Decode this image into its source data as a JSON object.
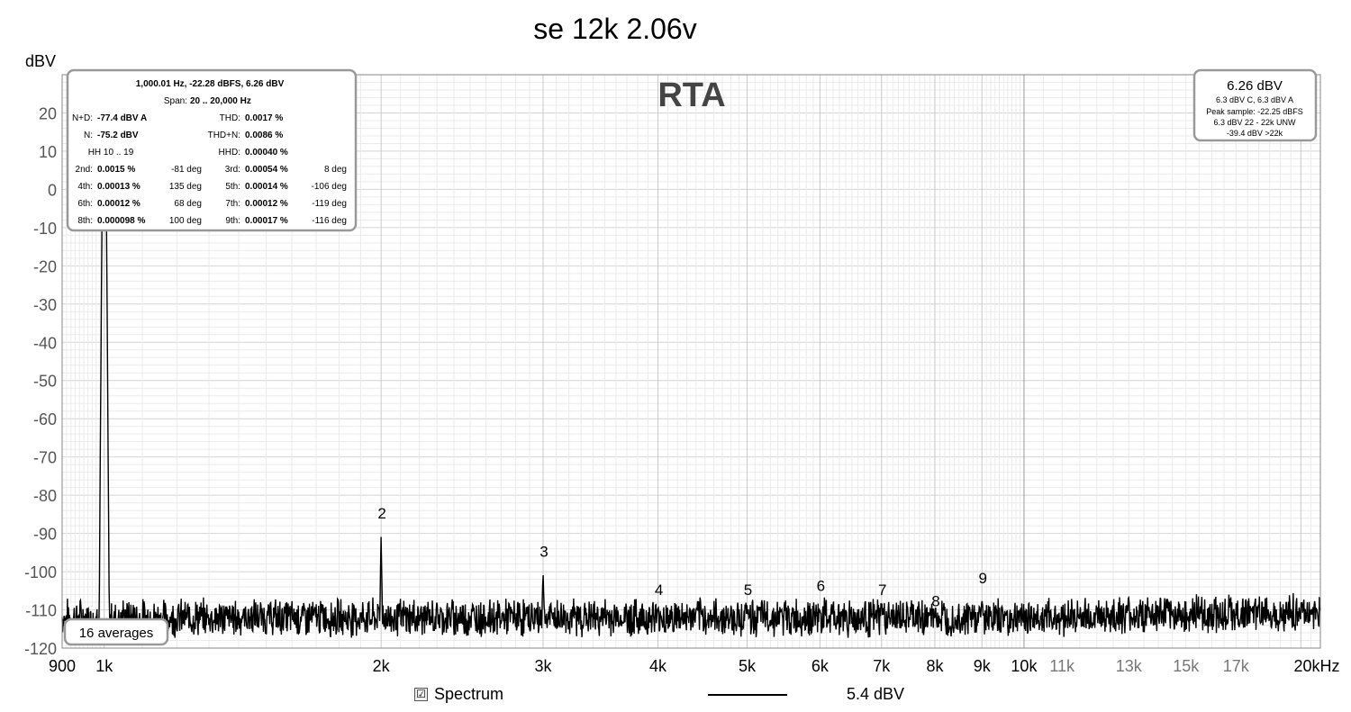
{
  "chart_data": {
    "type": "line",
    "title": "se 12k 2.06v",
    "watermark": "RTA",
    "ylabel": "dBV",
    "xlabel": "",
    "x_scale": "log",
    "xlim": [
      900,
      21000
    ],
    "ylim": [
      -120,
      30
    ],
    "y_ticks": [
      20,
      10,
      0,
      -10,
      -20,
      -30,
      -40,
      -50,
      -60,
      -70,
      -80,
      -90,
      -100,
      -110,
      -120
    ],
    "x_ticks": [
      {
        "value": 900,
        "label": "900",
        "major": true
      },
      {
        "value": 1000,
        "label": "1k",
        "major": true
      },
      {
        "value": 2000,
        "label": "2k",
        "major": true
      },
      {
        "value": 3000,
        "label": "3k",
        "major": true
      },
      {
        "value": 4000,
        "label": "4k",
        "major": true
      },
      {
        "value": 5000,
        "label": "5k",
        "major": true
      },
      {
        "value": 6000,
        "label": "6k",
        "major": true
      },
      {
        "value": 7000,
        "label": "7k",
        "major": true
      },
      {
        "value": 8000,
        "label": "8k",
        "major": true
      },
      {
        "value": 9000,
        "label": "9k",
        "major": true
      },
      {
        "value": 10000,
        "label": "10k",
        "major": true
      },
      {
        "value": 11000,
        "label": "11k",
        "major": false
      },
      {
        "value": 13000,
        "label": "13k",
        "major": false
      },
      {
        "value": 15000,
        "label": "15k",
        "major": false
      },
      {
        "value": 17000,
        "label": "17k",
        "major": false
      },
      {
        "value": 20000,
        "label": "20kHz",
        "major": true
      }
    ],
    "grid": true,
    "colors": {
      "trace": "#000000",
      "grid": "#d4d4d4",
      "minor_grid": "#ebebeb",
      "watermark": "#444444"
    },
    "series": [
      {
        "name": "Spectrum",
        "noise_floor": -112,
        "peaks": [
          {
            "freq": 1000,
            "level": 6.3
          },
          {
            "freq": 2000,
            "level": -90
          },
          {
            "freq": 3000,
            "level": -100
          },
          {
            "freq": 4000,
            "level": -111
          },
          {
            "freq": 5000,
            "level": -110
          },
          {
            "freq": 6000,
            "level": -110
          },
          {
            "freq": 7000,
            "level": -110
          },
          {
            "freq": 8000,
            "level": -112
          },
          {
            "freq": 9000,
            "level": -107
          }
        ]
      }
    ],
    "harmonic_markers": [
      {
        "label": "2",
        "freq": 2000,
        "level": -87
      },
      {
        "label": "3",
        "freq": 3000,
        "level": -97
      },
      {
        "label": "4",
        "freq": 4000,
        "level": -107
      },
      {
        "label": "5",
        "freq": 5000,
        "level": -107
      },
      {
        "label": "6",
        "freq": 6000,
        "level": -106
      },
      {
        "label": "7",
        "freq": 7000,
        "level": -107
      },
      {
        "label": "8",
        "freq": 8000,
        "level": -110
      },
      {
        "label": "9",
        "freq": 9000,
        "level": -104
      }
    ],
    "averages_label": "16 averages",
    "legend": {
      "checked": true,
      "name": "Spectrum",
      "value": "5.4 dBV"
    }
  },
  "info_box": {
    "header": "1,000.01 Hz, -22.28 dBFS, 6.26 dBV",
    "span_label": "Span:",
    "span_value": "20 .. 20,000 Hz",
    "rows": [
      [
        {
          "label": "N+D:",
          "value": "-77.4 dBV A",
          "bold": true
        },
        {
          "label": "",
          "value": ""
        },
        {
          "label": "THD:",
          "value": "0.0017 %",
          "bold": true
        },
        {
          "label": "",
          "value": ""
        }
      ],
      [
        {
          "label": "N:",
          "value": "-75.2 dBV",
          "bold": true
        },
        {
          "label": "",
          "value": ""
        },
        {
          "label": "THD+N:",
          "value": "0.0086 %",
          "bold": true
        },
        {
          "label": "",
          "value": ""
        }
      ],
      [
        {
          "label": "HH 10 .. 19",
          "value": ""
        },
        {
          "label": "",
          "value": ""
        },
        {
          "label": "HHD:",
          "value": "0.00040 %",
          "bold": true
        },
        {
          "label": "",
          "value": ""
        }
      ],
      [
        {
          "label": "2nd:",
          "value": "0.0015 %",
          "bold": true
        },
        {
          "label": "",
          "value": "-81 deg"
        },
        {
          "label": "3rd:",
          "value": "0.00054 %",
          "bold": true
        },
        {
          "label": "",
          "value": "8 deg"
        }
      ],
      [
        {
          "label": "4th:",
          "value": "0.00013 %",
          "bold": true
        },
        {
          "label": "",
          "value": "135 deg"
        },
        {
          "label": "5th:",
          "value": "0.00014 %",
          "bold": true
        },
        {
          "label": "",
          "value": "-106 deg"
        }
      ],
      [
        {
          "label": "6th:",
          "value": "0.00012 %",
          "bold": true
        },
        {
          "label": "",
          "value": "68 deg"
        },
        {
          "label": "7th:",
          "value": "0.00012 %",
          "bold": true
        },
        {
          "label": "",
          "value": "-119 deg"
        }
      ],
      [
        {
          "label": "8th:",
          "value": "0.000098 %",
          "bold": true
        },
        {
          "label": "",
          "value": "100 deg"
        },
        {
          "label": "9th:",
          "value": "0.00017 %",
          "bold": true
        },
        {
          "label": "",
          "value": "-116 deg"
        }
      ]
    ]
  },
  "level_box": {
    "main": "6.26 dBV",
    "lines": [
      "6.3 dBV C, 6.3 dBV A",
      "Peak sample: -22.25 dBFS",
      "6.3 dBV 22 - 22k UNW",
      "-39.4 dBV >22k"
    ]
  }
}
